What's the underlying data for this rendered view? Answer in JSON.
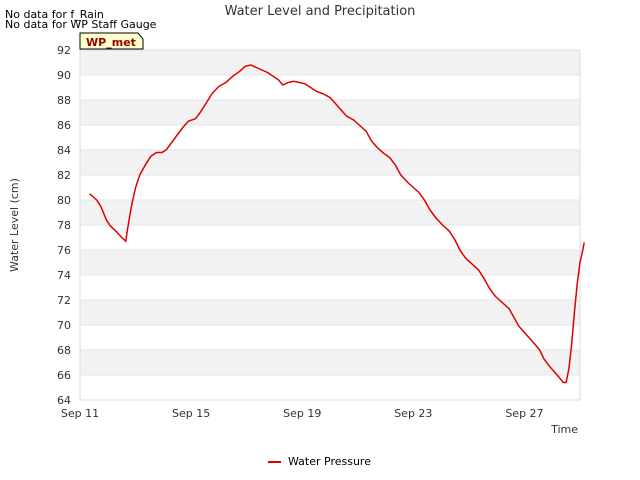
{
  "notes": [
    "No data for f_Rain",
    "No data for WP Staff Gauge"
  ],
  "chart_data": {
    "type": "line",
    "title": "Water Level and Precipitation",
    "xlabel": "Time",
    "ylabel": "Water Level (cm)",
    "site_badge": "WP_met",
    "xlim": [
      0,
      18
    ],
    "ylim": [
      64,
      92
    ],
    "x_ticks": [
      {
        "value": 0,
        "label": "Sep 11"
      },
      {
        "value": 4,
        "label": "Sep 15"
      },
      {
        "value": 8,
        "label": "Sep 19"
      },
      {
        "value": 12,
        "label": "Sep 23"
      },
      {
        "value": 16,
        "label": "Sep 27"
      }
    ],
    "y_ticks": [
      64,
      66,
      68,
      70,
      72,
      74,
      76,
      78,
      80,
      82,
      84,
      86,
      88,
      90,
      92
    ],
    "grid": true,
    "legend_position": "bottom-center",
    "series": [
      {
        "name": "Water Pressure",
        "color": "#dd0000",
        "points": [
          [
            0.35,
            80.5
          ],
          [
            0.6,
            80.0
          ],
          [
            0.75,
            79.5
          ],
          [
            0.95,
            78.4
          ],
          [
            1.1,
            77.9
          ],
          [
            1.3,
            77.5
          ],
          [
            1.5,
            77.0
          ],
          [
            1.65,
            76.7
          ],
          [
            1.7,
            77.5
          ],
          [
            1.85,
            79.5
          ],
          [
            2.0,
            81.0
          ],
          [
            2.15,
            82.0
          ],
          [
            2.35,
            82.8
          ],
          [
            2.55,
            83.5
          ],
          [
            2.75,
            83.8
          ],
          [
            2.95,
            83.8
          ],
          [
            3.1,
            84.0
          ],
          [
            3.3,
            84.6
          ],
          [
            3.5,
            85.2
          ],
          [
            3.7,
            85.8
          ],
          [
            3.9,
            86.3
          ],
          [
            4.15,
            86.5
          ],
          [
            4.3,
            86.9
          ],
          [
            4.5,
            87.6
          ],
          [
            4.75,
            88.5
          ],
          [
            5.0,
            89.1
          ],
          [
            5.25,
            89.4
          ],
          [
            5.5,
            89.9
          ],
          [
            5.75,
            90.3
          ],
          [
            5.95,
            90.7
          ],
          [
            6.15,
            90.8
          ],
          [
            6.35,
            90.6
          ],
          [
            6.55,
            90.4
          ],
          [
            6.75,
            90.2
          ],
          [
            6.95,
            89.9
          ],
          [
            7.15,
            89.6
          ],
          [
            7.3,
            89.2
          ],
          [
            7.5,
            89.4
          ],
          [
            7.7,
            89.5
          ],
          [
            7.9,
            89.4
          ],
          [
            8.1,
            89.3
          ],
          [
            8.3,
            89.0
          ],
          [
            8.5,
            88.7
          ],
          [
            8.75,
            88.5
          ],
          [
            9.0,
            88.2
          ],
          [
            9.2,
            87.7
          ],
          [
            9.4,
            87.2
          ],
          [
            9.6,
            86.7
          ],
          [
            9.85,
            86.4
          ],
          [
            10.05,
            86.0
          ],
          [
            10.3,
            85.5
          ],
          [
            10.5,
            84.7
          ],
          [
            10.7,
            84.2
          ],
          [
            10.95,
            83.7
          ],
          [
            11.15,
            83.4
          ],
          [
            11.35,
            82.8
          ],
          [
            11.55,
            82.0
          ],
          [
            11.8,
            81.4
          ],
          [
            12.0,
            81.0
          ],
          [
            12.2,
            80.6
          ],
          [
            12.4,
            80.0
          ],
          [
            12.6,
            79.2
          ],
          [
            12.8,
            78.6
          ],
          [
            13.05,
            78.0
          ],
          [
            13.3,
            77.5
          ],
          [
            13.5,
            76.8
          ],
          [
            13.7,
            75.9
          ],
          [
            13.9,
            75.3
          ],
          [
            14.1,
            74.9
          ],
          [
            14.35,
            74.4
          ],
          [
            14.55,
            73.7
          ],
          [
            14.75,
            72.9
          ],
          [
            14.95,
            72.3
          ],
          [
            15.2,
            71.8
          ],
          [
            15.45,
            71.3
          ],
          [
            15.6,
            70.7
          ],
          [
            15.8,
            69.9
          ],
          [
            16.0,
            69.4
          ],
          [
            16.2,
            68.9
          ],
          [
            16.4,
            68.4
          ],
          [
            16.55,
            68.0
          ],
          [
            16.7,
            67.3
          ],
          [
            16.9,
            66.7
          ],
          [
            17.1,
            66.2
          ],
          [
            17.25,
            65.8
          ],
          [
            17.4,
            65.4
          ],
          [
            17.5,
            65.4
          ],
          [
            17.6,
            66.5
          ],
          [
            17.7,
            68.5
          ],
          [
            17.8,
            71.0
          ],
          [
            17.9,
            73.3
          ],
          [
            18.0,
            75.0
          ],
          [
            18.1,
            76.0
          ],
          [
            18.15,
            76.6
          ]
        ]
      }
    ]
  }
}
